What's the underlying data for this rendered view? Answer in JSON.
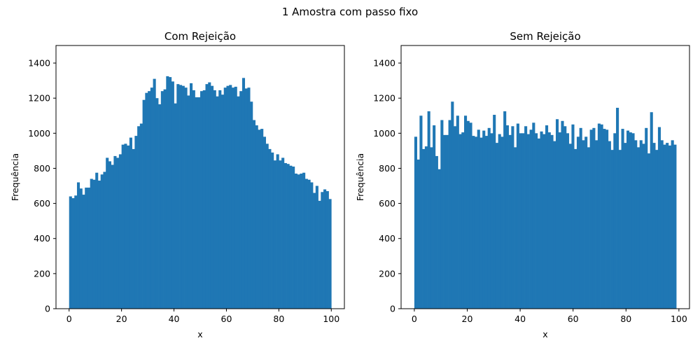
{
  "figure": {
    "suptitle": "1 Amostra com passo fixo"
  },
  "chart_data": [
    {
      "type": "bar",
      "title": "Com Rejeição",
      "xlabel": "x",
      "ylabel": "Frequência",
      "xlim": [
        -5,
        105
      ],
      "ylim": [
        0,
        1500
      ],
      "xticks": [
        0,
        20,
        40,
        60,
        80,
        100
      ],
      "yticks": [
        0,
        200,
        400,
        600,
        800,
        1000,
        1200,
        1400
      ],
      "bin_range": [
        0,
        100
      ],
      "bar_color": "#1f77b4",
      "grid": false,
      "values": [
        640,
        630,
        645,
        720,
        685,
        650,
        690,
        690,
        740,
        735,
        775,
        730,
        765,
        780,
        860,
        840,
        820,
        870,
        860,
        880,
        935,
        940,
        930,
        975,
        910,
        985,
        1040,
        1055,
        1190,
        1230,
        1240,
        1260,
        1310,
        1200,
        1165,
        1240,
        1250,
        1325,
        1320,
        1295,
        1170,
        1280,
        1275,
        1270,
        1260,
        1215,
        1285,
        1245,
        1205,
        1205,
        1240,
        1245,
        1280,
        1290,
        1270,
        1245,
        1210,
        1245,
        1220,
        1260,
        1270,
        1275,
        1260,
        1265,
        1210,
        1240,
        1315,
        1255,
        1260,
        1180,
        1075,
        1045,
        1020,
        1025,
        980,
        940,
        910,
        890,
        845,
        880,
        845,
        860,
        830,
        825,
        815,
        810,
        770,
        765,
        770,
        775,
        740,
        735,
        720,
        660,
        700,
        615,
        665,
        680,
        670,
        625
      ]
    },
    {
      "type": "bar",
      "title": "Sem Rejeição",
      "xlabel": "x",
      "ylabel": "Frequência",
      "xlim": [
        -5,
        104
      ],
      "ylim": [
        0,
        1500
      ],
      "xticks": [
        0,
        20,
        40,
        60,
        80,
        100
      ],
      "yticks": [
        0,
        200,
        400,
        600,
        800,
        1000,
        1200,
        1400
      ],
      "bin_range": [
        0,
        99
      ],
      "bar_color": "#1f77b4",
      "grid": false,
      "values": [
        980,
        850,
        1100,
        910,
        925,
        1125,
        920,
        1045,
        870,
        795,
        1075,
        990,
        990,
        1075,
        1180,
        1040,
        1100,
        995,
        1005,
        1100,
        1070,
        1060,
        985,
        980,
        1020,
        975,
        1015,
        985,
        1030,
        1000,
        1105,
        945,
        995,
        980,
        1125,
        1045,
        990,
        1040,
        920,
        1055,
        1000,
        1000,
        1040,
        995,
        1020,
        1060,
        1000,
        970,
        1010,
        995,
        1045,
        1005,
        990,
        955,
        1080,
        1005,
        1070,
        1040,
        1000,
        940,
        1050,
        910,
        980,
        1030,
        960,
        980,
        920,
        1020,
        1030,
        960,
        1055,
        1050,
        1025,
        1020,
        955,
        905,
        1000,
        1145,
        905,
        1025,
        945,
        1015,
        1005,
        1000,
        960,
        920,
        960,
        940,
        1030,
        885,
        1120,
        945,
        905,
        1035,
        960,
        935,
        945,
        930,
        960,
        935
      ]
    }
  ]
}
